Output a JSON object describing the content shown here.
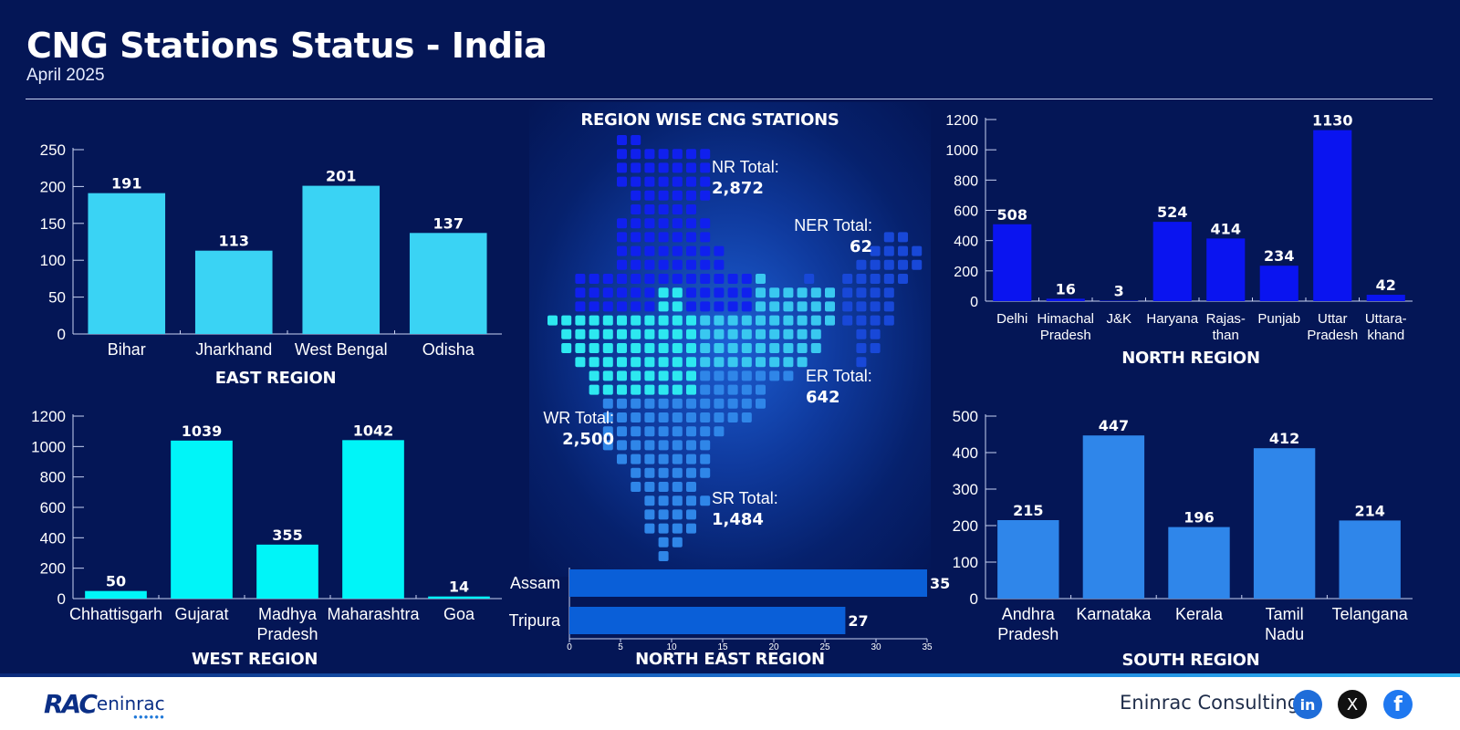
{
  "header": {
    "title": "CNG Stations Status - India",
    "subtitle": "April 2025"
  },
  "map": {
    "title": "REGION WISE CNG STATIONS",
    "totals": [
      {
        "label": "NR Total:",
        "value": "2,872"
      },
      {
        "label": "NER Total:",
        "value": "62"
      },
      {
        "label": "ER Total:",
        "value": "642"
      },
      {
        "label": "WR Total:",
        "value": "2,500"
      },
      {
        "label": "SR Total:",
        "value": "1,484"
      }
    ],
    "colors": {
      "north": "#1020ee",
      "northeast": "#1848d8",
      "east": "#39c8f0",
      "west": "#2de8f0",
      "south": "#2f86e8"
    }
  },
  "footer": {
    "logo_text": "RAC",
    "logo_sub": "eninrac",
    "company": "Eninrac Consulting",
    "social": [
      {
        "icon": "linkedin-icon",
        "glyph": "in"
      },
      {
        "icon": "x-icon",
        "glyph": "X"
      },
      {
        "icon": "facebook-icon",
        "glyph": "f"
      }
    ]
  },
  "chart_data": [
    {
      "id": "east",
      "type": "bar",
      "title": "EAST REGION",
      "color": "#3ad3f4",
      "categories": [
        "Bihar",
        "Jharkhand",
        "West Bengal",
        "Odisha"
      ],
      "values": [
        191,
        113,
        201,
        137
      ],
      "ylim": [
        0,
        250
      ],
      "yticks": [
        0,
        50,
        100,
        150,
        200,
        250
      ]
    },
    {
      "id": "north",
      "type": "bar",
      "title": "NORTH REGION",
      "color": "#0a14f0",
      "categories": [
        "Delhi",
        "Himachal Pradesh",
        "J&K",
        "Haryana",
        "Rajas- than",
        "Punjab",
        "Uttar Pradesh",
        "Uttara- khand"
      ],
      "values": [
        508,
        16,
        3,
        524,
        414,
        234,
        1130,
        42
      ],
      "ylim": [
        0,
        1200
      ],
      "yticks": [
        0,
        200,
        400,
        600,
        800,
        1000,
        1200
      ]
    },
    {
      "id": "west",
      "type": "bar",
      "title": "WEST REGION",
      "color": "#00f5f8",
      "categories": [
        "Chhattisgarh",
        "Gujarat",
        "Madhya Pradesh",
        "Maharashtra",
        "Goa"
      ],
      "values": [
        50,
        1039,
        355,
        1042,
        14
      ],
      "ylim": [
        0,
        1200
      ],
      "yticks": [
        0,
        200,
        400,
        600,
        800,
        1000,
        1200
      ]
    },
    {
      "id": "south",
      "type": "bar",
      "title": "SOUTH REGION",
      "color": "#2f86ea",
      "categories": [
        "Andhra Pradesh",
        "Karnataka",
        "Kerala",
        "Tamil Nadu",
        "Telangana"
      ],
      "values": [
        215,
        447,
        196,
        412,
        214
      ],
      "ylim": [
        0,
        500
      ],
      "yticks": [
        0,
        100,
        200,
        300,
        400,
        500
      ]
    },
    {
      "id": "northeast",
      "type": "bar",
      "orientation": "horizontal",
      "title": "NORTH EAST REGION",
      "color": "#0a5fd8",
      "categories": [
        "Assam",
        "Tripura"
      ],
      "values": [
        35,
        27
      ],
      "xlim": [
        0,
        35
      ],
      "xticks": [
        0,
        5,
        10,
        15,
        20,
        25,
        30,
        35
      ]
    }
  ]
}
